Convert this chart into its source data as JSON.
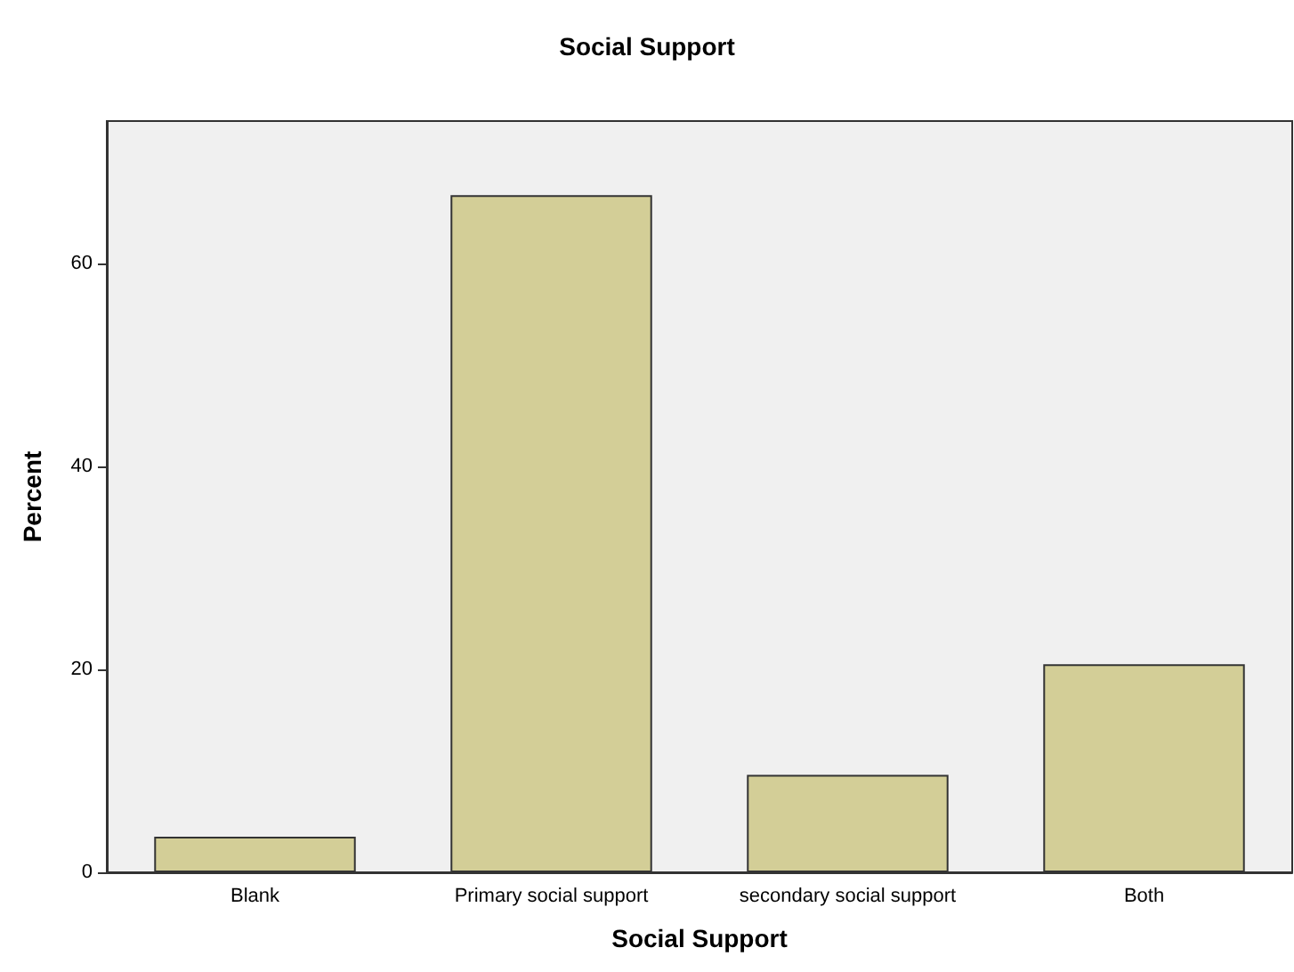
{
  "chart_data": {
    "type": "bar",
    "title": "Social Support",
    "xlabel": "Social Support",
    "ylabel": "Percent",
    "categories": [
      "Blank",
      "Primary social support",
      "secondary social support",
      "Both"
    ],
    "values": [
      3.5,
      66.7,
      9.6,
      20.5
    ],
    "color": "#d3ce97",
    "ylim": [
      0,
      74
    ],
    "yticks": [
      0,
      20,
      40,
      60
    ],
    "grid": false
  }
}
